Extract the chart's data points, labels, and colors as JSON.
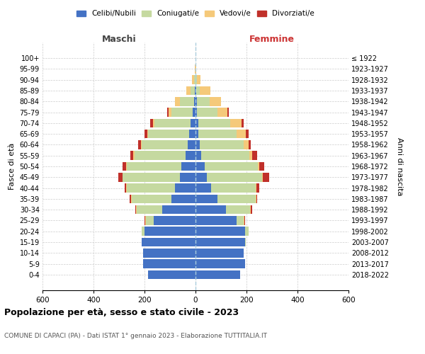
{
  "age_groups": [
    "0-4",
    "5-9",
    "10-14",
    "15-19",
    "20-24",
    "25-29",
    "30-34",
    "35-39",
    "40-44",
    "45-49",
    "50-54",
    "55-59",
    "60-64",
    "65-69",
    "70-74",
    "75-79",
    "80-84",
    "85-89",
    "90-94",
    "95-99",
    "100+"
  ],
  "birth_years": [
    "2018-2022",
    "2013-2017",
    "2008-2012",
    "2003-2007",
    "1998-2002",
    "1993-1997",
    "1988-1992",
    "1983-1987",
    "1978-1982",
    "1973-1977",
    "1968-1972",
    "1963-1967",
    "1958-1962",
    "1953-1957",
    "1948-1952",
    "1943-1947",
    "1938-1942",
    "1933-1937",
    "1928-1932",
    "1923-1927",
    "≤ 1922"
  ],
  "colors": {
    "celibi": "#4472c4",
    "coniugati": "#c5d9a0",
    "vedovi": "#f5c97a",
    "divorziati": "#c0302a"
  },
  "males": {
    "celibi": [
      185,
      205,
      205,
      210,
      200,
      165,
      130,
      95,
      80,
      60,
      55,
      40,
      30,
      25,
      20,
      10,
      5,
      2,
      0,
      0,
      0
    ],
    "coniugati": [
      0,
      0,
      0,
      2,
      10,
      30,
      100,
      155,
      190,
      225,
      215,
      200,
      180,
      160,
      140,
      85,
      55,
      18,
      5,
      0,
      0
    ],
    "vedovi": [
      0,
      0,
      0,
      0,
      2,
      2,
      2,
      2,
      2,
      2,
      3,
      5,
      5,
      5,
      8,
      10,
      20,
      15,
      10,
      2,
      0
    ],
    "divorziati": [
      0,
      0,
      0,
      0,
      0,
      3,
      3,
      5,
      5,
      15,
      12,
      10,
      10,
      10,
      10,
      5,
      0,
      0,
      0,
      0,
      0
    ]
  },
  "females": {
    "nubili": [
      175,
      195,
      190,
      195,
      195,
      160,
      120,
      85,
      60,
      45,
      35,
      22,
      18,
      12,
      10,
      5,
      5,
      2,
      0,
      0,
      0
    ],
    "coniugate": [
      0,
      0,
      0,
      2,
      12,
      30,
      95,
      150,
      175,
      215,
      210,
      190,
      170,
      150,
      125,
      80,
      50,
      15,
      5,
      0,
      0
    ],
    "vedove": [
      0,
      0,
      0,
      0,
      2,
      2,
      2,
      3,
      5,
      5,
      5,
      10,
      20,
      35,
      45,
      40,
      45,
      40,
      15,
      2,
      0
    ],
    "divorziate": [
      0,
      0,
      0,
      0,
      0,
      3,
      5,
      5,
      10,
      25,
      20,
      20,
      10,
      10,
      8,
      5,
      0,
      0,
      0,
      0,
      0
    ]
  },
  "xlim": 600,
  "title": "Popolazione per età, sesso e stato civile - 2023",
  "subtitle": "COMUNE DI CAPACI (PA) - Dati ISTAT 1° gennaio 2023 - Elaborazione TUTTITALIA.IT",
  "xlabel_left": "Maschi",
  "xlabel_right": "Femmine",
  "ylabel_left": "Fasce di età",
  "ylabel_right": "Anni di nascita",
  "legend_labels": [
    "Celibi/Nubili",
    "Coniugati/e",
    "Vedovi/e",
    "Divorziati/e"
  ]
}
